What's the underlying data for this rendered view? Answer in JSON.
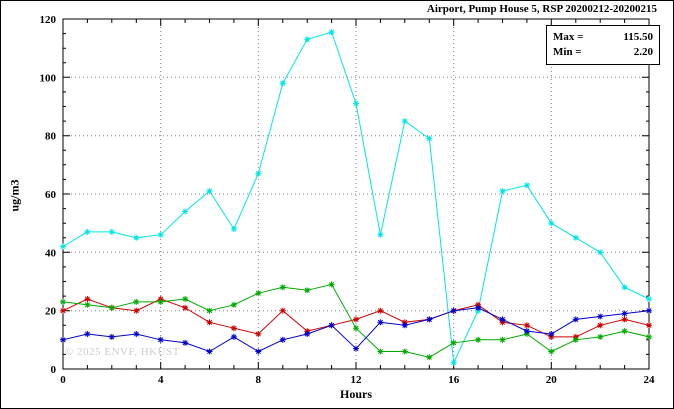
{
  "title": "Airport, Pump House 5, RSP 20200212-20200215",
  "legend": {
    "rows": [
      {
        "label": "Max =",
        "value": "115.50"
      },
      {
        "label": "Min =",
        "value": "2.20"
      }
    ]
  },
  "watermark": "© 2025 ENVF, HKUST",
  "chart_data": {
    "type": "line",
    "title": "Airport, Pump House 5, RSP 20200212-20200215",
    "xlabel": "Hours",
    "ylabel": "ug/m3",
    "xlim": [
      0,
      24
    ],
    "ylim": [
      0,
      120
    ],
    "xticks": [
      0,
      4,
      8,
      12,
      16,
      20,
      24
    ],
    "yticks": [
      0,
      20,
      40,
      60,
      80,
      100,
      120
    ],
    "grid": true,
    "legend_position": "top-right",
    "marker": "asterisk",
    "x": [
      0,
      1,
      2,
      3,
      4,
      5,
      6,
      7,
      8,
      9,
      10,
      11,
      12,
      13,
      14,
      15,
      16,
      17,
      18,
      19,
      20,
      21,
      22,
      23,
      24
    ],
    "series": [
      {
        "name": "cyan",
        "color": "#00e5e5",
        "values": [
          42,
          47,
          47,
          45,
          46,
          54,
          61,
          48,
          67,
          98,
          113,
          115.5,
          91,
          46,
          85,
          79,
          2.2,
          20,
          61,
          63,
          50,
          45,
          40,
          28,
          24
        ]
      },
      {
        "name": "red",
        "color": "#cc0000",
        "values": [
          20,
          24,
          21,
          20,
          24,
          21,
          16,
          14,
          12,
          20,
          13,
          15,
          17,
          20,
          16,
          17,
          20,
          22,
          16,
          15,
          11,
          11,
          15,
          17,
          15
        ]
      },
      {
        "name": "green",
        "color": "#00aa00",
        "values": [
          23,
          22,
          21,
          23,
          23,
          24,
          20,
          22,
          26,
          28,
          27,
          29,
          14,
          6,
          6,
          4,
          9,
          10,
          10,
          12,
          6,
          10,
          11,
          13,
          11
        ]
      },
      {
        "name": "blue",
        "color": "#0000cc",
        "values": [
          10,
          12,
          11,
          12,
          10,
          9,
          6,
          11,
          6,
          10,
          12,
          15,
          7,
          16,
          15,
          17,
          20,
          21,
          17,
          13,
          12,
          17,
          18,
          19,
          20
        ]
      }
    ],
    "stats": {
      "max": 115.5,
      "min": 2.2
    }
  }
}
